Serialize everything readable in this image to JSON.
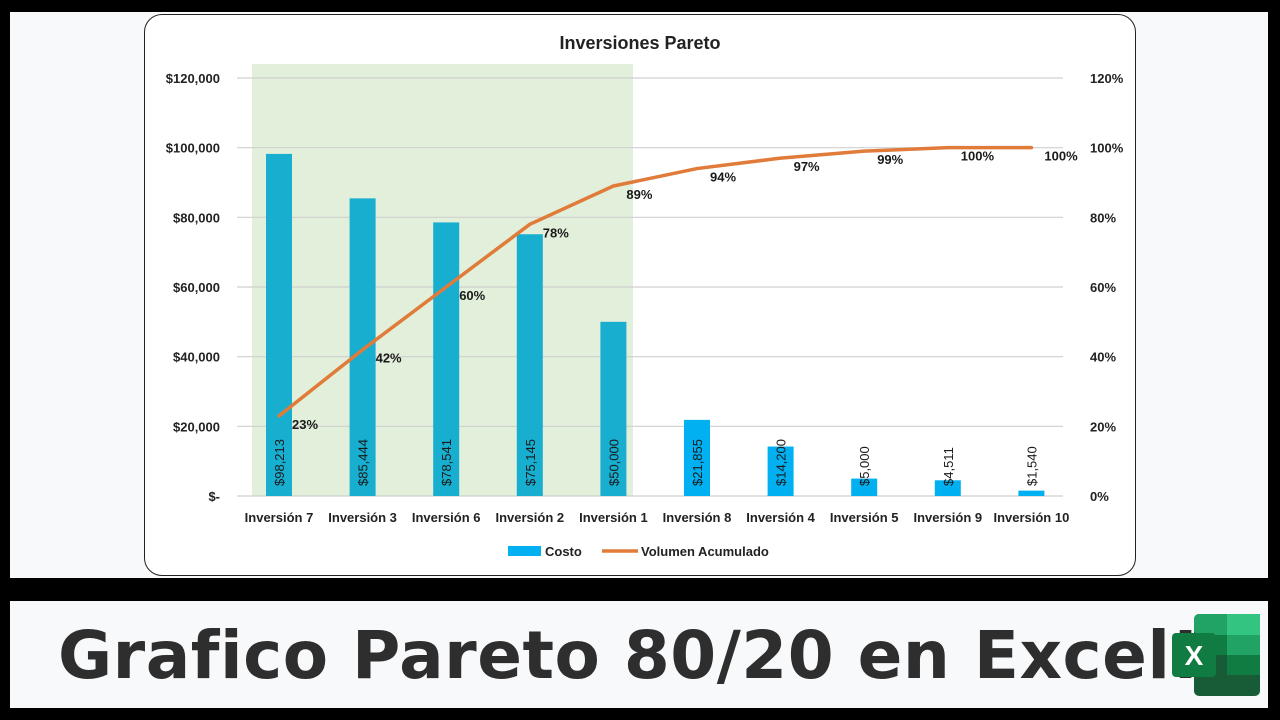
{
  "banner": {
    "title": "Grafico Pareto 80/20 en Excel!",
    "icon": "excel-icon",
    "icon_letter": "X"
  },
  "colors": {
    "bar": "#1aafd0",
    "line": "#e07b39",
    "highlight": "#e2efda",
    "frame": "#000000",
    "banner_text": "#2e2e2e",
    "excel_green_dark": "#107c41",
    "excel_green_light": "#33c481"
  },
  "chart_data": {
    "type": "bar",
    "title": "Inversiones Pareto",
    "xlabel": "",
    "ylabel": "",
    "y2label": "",
    "categories": [
      "Inversión 7",
      "Inversión 3",
      "Inversión 6",
      "Inversión 2",
      "Inversión 1",
      "Inversión 8",
      "Inversión 4",
      "Inversión 5",
      "Inversión 9",
      "Inversión 10"
    ],
    "series": [
      {
        "name": "Costo",
        "type": "bar",
        "axis": "left",
        "values": [
          98213,
          85444,
          78541,
          75145,
          50000,
          21855,
          14200,
          5000,
          4511,
          1540
        ],
        "labels": [
          "$98,213",
          "$85,444",
          "$78,541",
          "$75,145",
          "$50,000",
          "$21,855",
          "$14,200",
          "$5,000",
          "$4,511",
          "$1,540"
        ]
      },
      {
        "name": "Volumen Acumulado",
        "type": "line",
        "axis": "right",
        "values": [
          23,
          42,
          60,
          78,
          89,
          94,
          97,
          99,
          100,
          100
        ],
        "labels": [
          "23%",
          "42%",
          "60%",
          "78%",
          "89%",
          "94%",
          "97%",
          "99%",
          "100%",
          "100%"
        ]
      }
    ],
    "ylim": [
      0,
      120000
    ],
    "y2lim": [
      0,
      120
    ],
    "y_ticks": [
      "$-",
      "$20,000",
      "$40,000",
      "$60,000",
      "$80,000",
      "$100,000",
      "$120,000"
    ],
    "y2_ticks": [
      "0%",
      "20%",
      "40%",
      "60%",
      "80%",
      "100%",
      "120%"
    ],
    "grid": true,
    "highlight_region": {
      "from": "Inversión 7",
      "to": "Inversión 1",
      "note": "80% zone shaded green"
    },
    "legend": {
      "position": "bottom",
      "entries": [
        "Costo",
        "Volumen Acumulado"
      ]
    }
  }
}
